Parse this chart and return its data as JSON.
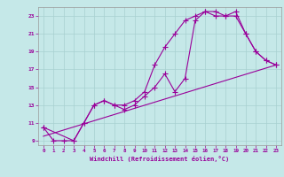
{
  "xlabel": "Windchill (Refroidissement éolien,°C)",
  "background_color": "#c5e8e8",
  "grid_color": "#a8d0d0",
  "line_color": "#990099",
  "xlim": [
    -0.5,
    23.5
  ],
  "ylim": [
    8.5,
    24.0
  ],
  "xticks": [
    0,
    1,
    2,
    3,
    4,
    5,
    6,
    7,
    8,
    9,
    10,
    11,
    12,
    13,
    14,
    15,
    16,
    17,
    18,
    19,
    20,
    21,
    22,
    23
  ],
  "yticks": [
    9,
    11,
    13,
    15,
    17,
    19,
    21,
    23
  ],
  "line1_x": [
    0,
    1,
    2,
    3,
    4,
    5,
    6,
    7,
    8,
    9,
    10,
    11,
    12,
    13,
    14,
    15,
    16,
    17,
    18,
    19,
    20,
    21,
    22,
    23
  ],
  "line1_y": [
    10.5,
    9.0,
    9.0,
    9.0,
    11.0,
    13.0,
    13.5,
    13.0,
    12.5,
    13.0,
    14.0,
    15.0,
    16.5,
    14.5,
    16.0,
    22.5,
    23.5,
    23.5,
    23.0,
    23.5,
    21.0,
    19.0,
    18.0,
    17.5
  ],
  "line2_x": [
    0,
    3,
    4,
    5,
    6,
    7,
    8,
    9,
    10,
    11,
    12,
    13,
    14,
    15,
    16,
    17,
    18,
    19,
    20,
    21,
    22,
    23
  ],
  "line2_y": [
    10.5,
    9.0,
    11.0,
    13.0,
    13.5,
    13.0,
    13.0,
    13.5,
    14.5,
    17.5,
    19.5,
    21.0,
    22.5,
    23.0,
    23.5,
    23.0,
    23.0,
    23.0,
    21.0,
    19.0,
    18.0,
    17.5
  ],
  "line3_x": [
    0,
    23
  ],
  "line3_y": [
    9.5,
    17.5
  ],
  "markersize": 3,
  "linewidth": 0.8
}
